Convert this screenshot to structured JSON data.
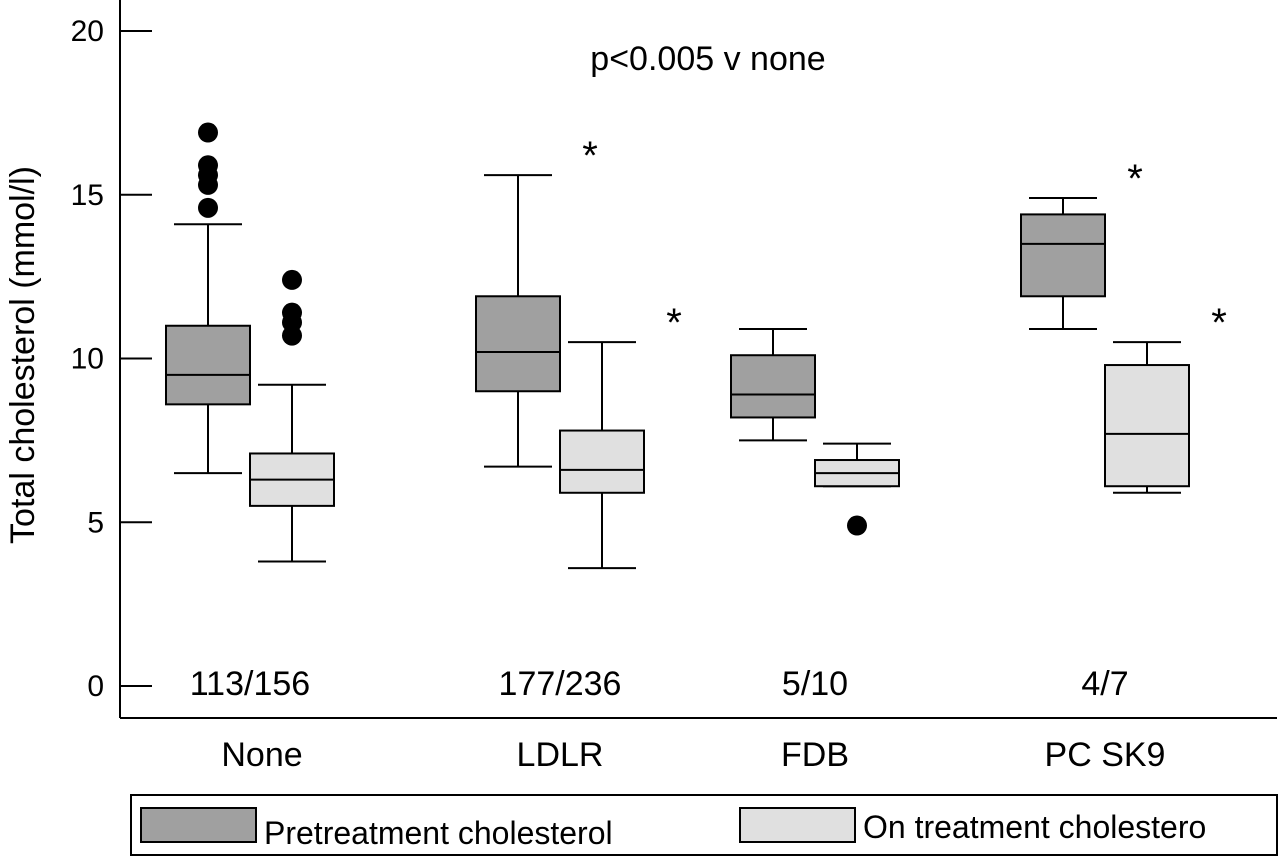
{
  "chart_data": {
    "type": "boxplot",
    "title": "",
    "annotation": "p<0.005 v none",
    "ylabel": "Total cholesterol (mmol/l)",
    "xlabel": "",
    "ylim": [
      0,
      20
    ],
    "yticks": [
      0,
      5,
      10,
      15,
      20
    ],
    "categories": [
      "None",
      "LDLR",
      "FDB",
      "PC SK9"
    ],
    "counts": [
      "113/156",
      "177/236",
      "5/10",
      "4/7"
    ],
    "series": [
      {
        "name": "Pretreatment cholesterol",
        "color": "#a0a0a0",
        "boxes": [
          {
            "category": "None",
            "whisker_low": 6.5,
            "q1": 8.6,
            "median": 9.5,
            "q3": 11.0,
            "whisker_high": 14.1,
            "outliers": [
              14.6,
              15.3,
              15.6,
              15.9,
              16.9
            ],
            "significant": false
          },
          {
            "category": "LDLR",
            "whisker_low": 6.7,
            "q1": 9.0,
            "median": 10.2,
            "q3": 11.9,
            "whisker_high": 15.6,
            "outliers": [],
            "significant": true
          },
          {
            "category": "FDB",
            "whisker_low": 7.5,
            "q1": 8.2,
            "median": 8.9,
            "q3": 10.1,
            "whisker_high": 10.9,
            "outliers": [],
            "significant": false
          },
          {
            "category": "PC SK9",
            "whisker_low": 10.9,
            "q1": 11.9,
            "median": 13.5,
            "q3": 14.4,
            "whisker_high": 14.9,
            "outliers": [],
            "significant": true
          }
        ]
      },
      {
        "name": "On treatment cholestero",
        "color": "#e0e0e0",
        "boxes": [
          {
            "category": "None",
            "whisker_low": 3.8,
            "q1": 5.5,
            "median": 6.3,
            "q3": 7.1,
            "whisker_high": 9.2,
            "outliers": [
              10.7,
              11.1,
              11.4,
              12.4
            ],
            "significant": false
          },
          {
            "category": "LDLR",
            "whisker_low": 3.6,
            "q1": 5.9,
            "median": 6.6,
            "q3": 7.8,
            "whisker_high": 10.5,
            "outliers": [],
            "significant": true
          },
          {
            "category": "FDB",
            "whisker_low": 6.1,
            "q1": 6.1,
            "median": 6.5,
            "q3": 6.9,
            "whisker_high": 7.4,
            "outliers": [
              4.9
            ],
            "significant": false
          },
          {
            "category": "PC SK9",
            "whisker_low": 5.9,
            "q1": 6.1,
            "median": 7.7,
            "q3": 9.8,
            "whisker_high": 10.5,
            "outliers": [],
            "significant": true
          }
        ]
      }
    ],
    "significance_marker": "*",
    "legend": {
      "placement": "bottom",
      "entries": [
        "Pretreatment cholesterol",
        "On treatment cholestero"
      ]
    },
    "grid": false
  }
}
